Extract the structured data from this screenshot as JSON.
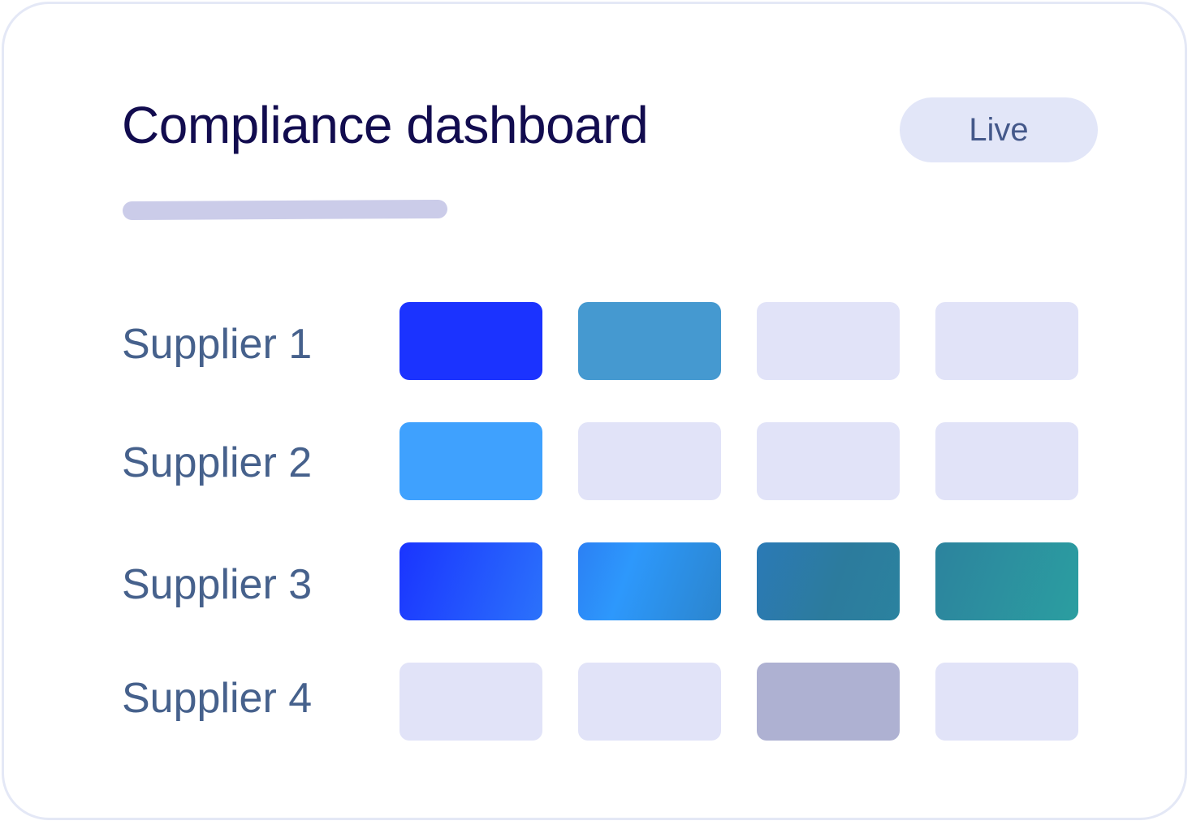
{
  "dashboard": {
    "title": "Compliance dashboard",
    "status_badge": "Live"
  },
  "colors": {
    "empty": "#e1e3f8",
    "blue": "#1b33ff",
    "steel_blue": "#4599d0",
    "sky_blue": "#3fa1fe",
    "muted_lavender": "#aeb1d2"
  },
  "suppliers": [
    {
      "label": "Supplier 1",
      "cells": [
        {
          "fill": "#1b33ff"
        },
        {
          "fill": "#4599d0"
        },
        {
          "fill": "#e1e3f8"
        },
        {
          "fill": "#e1e3f8"
        }
      ]
    },
    {
      "label": "Supplier 2",
      "cells": [
        {
          "fill": "#3fa1fe"
        },
        {
          "fill": "#e1e3f8"
        },
        {
          "fill": "#e1e3f8"
        },
        {
          "fill": "#e1e3f8"
        }
      ]
    },
    {
      "label": "Supplier 3",
      "cells": [
        {
          "fill": "linear-gradient(110deg, #1a34ff 0%, #2b72fb 100%)"
        },
        {
          "fill": "linear-gradient(110deg, #2c80f4 0%, #2d98fc 35%, #2b85cd 100%)"
        },
        {
          "fill": "linear-gradient(110deg, #2b7ab6 0%, #2c7b9d 55%, #2b829f 100%)"
        },
        {
          "fill": "linear-gradient(110deg, #2c839e 0%, #2b9ea0 100%)"
        }
      ]
    },
    {
      "label": "Supplier 4",
      "cells": [
        {
          "fill": "#e1e3f8"
        },
        {
          "fill": "#e1e3f8"
        },
        {
          "fill": "#aeb1d2"
        },
        {
          "fill": "#e1e3f8"
        }
      ]
    }
  ]
}
